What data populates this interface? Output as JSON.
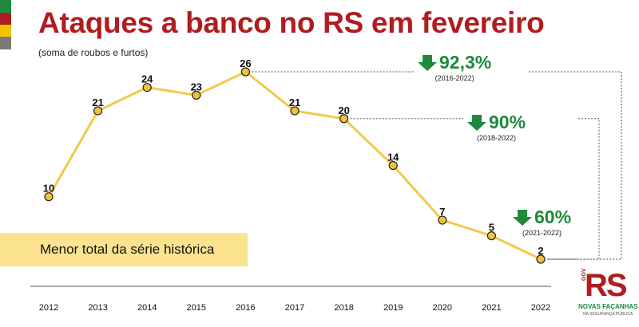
{
  "title": "Ataques a banco no RS em fevereiro",
  "subtitle": "(soma de roubos e furtos)",
  "banner": {
    "text": "Menor total da série histórica"
  },
  "callouts": [
    {
      "pct": "92,3%",
      "period": "(2016-2022)",
      "arrow_icon": "down-arrow-icon"
    },
    {
      "pct": "90%",
      "period": "(2018-2022)",
      "arrow_icon": "down-arrow-icon"
    },
    {
      "pct": "60%",
      "period": "(2021-2022)",
      "arrow_icon": "down-arrow-icon"
    }
  ],
  "logo": {
    "gov_text": "GOV",
    "rs_text": "RS",
    "motto": "NOVAS FAÇANHAS",
    "area": "NA SEGURANÇA PÚBLICA"
  },
  "colors": {
    "title": "#b01c1f",
    "line": "#f2c94c",
    "marker_fill": "#f2c13a",
    "marker_stroke": "#222222",
    "callout": "#1f8a3b",
    "banner": "#fbe38f",
    "flag": [
      "#1f8a3b",
      "#b01c1f",
      "#f2c400",
      "#7a7a7a"
    ]
  },
  "chart_data": {
    "type": "line",
    "title": "Ataques a banco no RS em fevereiro",
    "subtitle": "(soma de roubos e furtos)",
    "categories": [
      "2012",
      "2013",
      "2014",
      "2015",
      "2016",
      "2017",
      "2018",
      "2019",
      "2020",
      "2021",
      "2022"
    ],
    "values": [
      10,
      21,
      24,
      23,
      26,
      21,
      20,
      14,
      7,
      5,
      2
    ],
    "xlabel": "",
    "ylabel": "",
    "ylim": [
      2,
      26
    ],
    "grid": false,
    "legend": "none",
    "annotations": [
      {
        "label": "92,3%",
        "period": "(2016-2022)",
        "from": "2016",
        "to": "2022"
      },
      {
        "label": "90%",
        "period": "(2018-2022)",
        "from": "2018",
        "to": "2022"
      },
      {
        "label": "60%",
        "period": "(2021-2022)",
        "from": "2021",
        "to": "2022"
      }
    ]
  }
}
